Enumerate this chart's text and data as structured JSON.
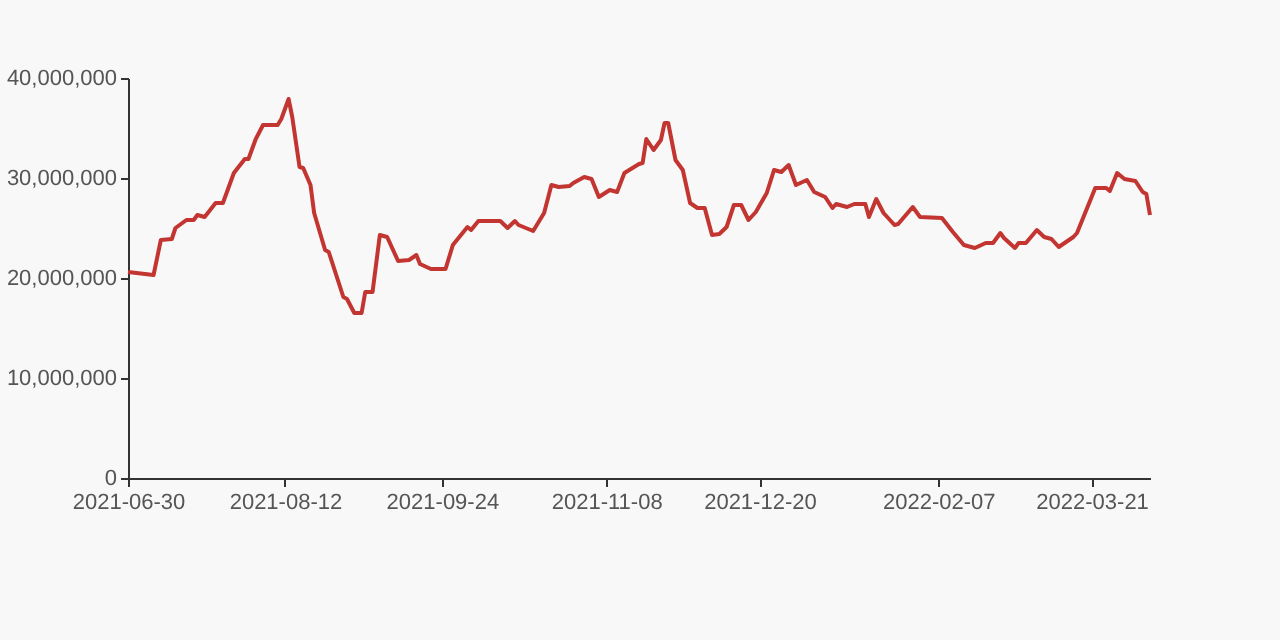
{
  "chart_data": {
    "type": "line",
    "x": [
      "2021-06-30",
      "2021-07-07",
      "2021-07-09",
      "2021-07-12",
      "2021-07-13",
      "2021-07-16",
      "2021-07-18",
      "2021-07-19",
      "2021-07-21",
      "2021-07-24",
      "2021-07-26",
      "2021-07-29",
      "2021-08-01",
      "2021-08-02",
      "2021-08-04",
      "2021-08-06",
      "2021-08-10",
      "2021-08-11",
      "2021-08-13",
      "2021-08-14",
      "2021-08-16",
      "2021-08-17",
      "2021-08-19",
      "2021-08-20",
      "2021-08-23",
      "2021-08-24",
      "2021-08-28",
      "2021-08-29",
      "2021-08-31",
      "2021-09-02",
      "2021-09-03",
      "2021-09-05",
      "2021-09-07",
      "2021-09-09",
      "2021-09-12",
      "2021-09-15",
      "2021-09-17",
      "2021-09-18",
      "2021-09-21",
      "2021-09-25",
      "2021-09-27",
      "2021-10-01",
      "2021-10-02",
      "2021-10-04",
      "2021-10-10",
      "2021-10-12",
      "2021-10-14",
      "2021-10-15",
      "2021-10-19",
      "2021-10-22",
      "2021-10-24",
      "2021-10-26",
      "2021-10-29",
      "2021-10-30",
      "2021-11-02",
      "2021-11-04",
      "2021-11-06",
      "2021-11-09",
      "2021-11-11",
      "2021-11-13",
      "2021-11-17",
      "2021-11-18",
      "2021-11-19",
      "2021-11-21",
      "2021-11-23",
      "2021-11-24",
      "2021-11-25",
      "2021-11-27",
      "2021-11-29",
      "2021-12-01",
      "2021-12-03",
      "2021-12-05",
      "2021-12-07",
      "2021-12-09",
      "2021-12-11",
      "2021-12-13",
      "2021-12-15",
      "2021-12-17",
      "2021-12-19",
      "2021-12-22",
      "2021-12-24",
      "2021-12-26",
      "2021-12-28",
      "2021-12-30",
      "2022-01-02",
      "2022-01-04",
      "2022-01-07",
      "2022-01-09",
      "2022-01-10",
      "2022-01-13",
      "2022-01-15",
      "2022-01-18",
      "2022-01-19",
      "2022-01-21",
      "2022-01-23",
      "2022-01-26",
      "2022-01-27",
      "2022-01-31",
      "2022-02-02",
      "2022-02-08",
      "2022-02-11",
      "2022-02-14",
      "2022-02-17",
      "2022-02-20",
      "2022-02-22",
      "2022-02-24",
      "2022-02-25",
      "2022-02-28",
      "2022-03-01",
      "2022-03-03",
      "2022-03-06",
      "2022-03-08",
      "2022-03-10",
      "2022-03-12",
      "2022-03-16",
      "2022-03-17",
      "2022-03-22",
      "2022-03-25",
      "2022-03-26",
      "2022-03-28",
      "2022-03-30",
      "2022-04-02",
      "2022-04-04",
      "2022-04-05",
      "2022-04-06"
    ],
    "series": [
      {
        "color": "#c23531",
        "values": [
          20600000,
          20300000,
          23800000,
          23900000,
          25000000,
          25800000,
          25800000,
          26300000,
          26100000,
          27500000,
          27500000,
          30500000,
          31900000,
          31900000,
          33900000,
          35300000,
          35300000,
          35900000,
          37900000,
          36100000,
          31100000,
          31000000,
          29300000,
          26500000,
          22800000,
          22600000,
          18100000,
          17900000,
          16500000,
          16500000,
          18600000,
          18600000,
          24300000,
          24100000,
          21700000,
          21800000,
          22300000,
          21400000,
          20900000,
          20900000,
          23300000,
          25100000,
          24800000,
          25700000,
          25700000,
          25000000,
          25700000,
          25300000,
          24700000,
          26500000,
          29300000,
          29100000,
          29200000,
          29500000,
          30100000,
          29900000,
          28100000,
          28800000,
          28600000,
          30500000,
          31400000,
          31500000,
          33900000,
          32800000,
          33800000,
          35500000,
          35500000,
          31800000,
          30800000,
          27500000,
          27000000,
          27000000,
          24300000,
          24400000,
          25100000,
          27300000,
          27300000,
          25800000,
          26600000,
          28500000,
          30800000,
          30600000,
          31300000,
          29300000,
          29800000,
          28600000,
          28100000,
          27000000,
          27400000,
          27100000,
          27400000,
          27400000,
          26100000,
          27900000,
          26500000,
          25300000,
          25400000,
          27100000,
          26100000,
          26000000,
          24600000,
          23300000,
          23000000,
          23500000,
          23500000,
          24500000,
          24000000,
          23000000,
          23500000,
          23500000,
          24800000,
          24100000,
          23900000,
          23100000,
          24100000,
          24500000,
          29000000,
          29000000,
          28700000,
          30500000,
          29900000,
          29700000,
          28600000,
          28400000,
          26300000
        ]
      }
    ],
    "xlim": [
      "2021-06-30",
      "2022-04-06"
    ],
    "xticks": [
      "2021-06-30",
      "2021-08-12",
      "2021-09-24",
      "2021-11-08",
      "2021-12-20",
      "2022-02-07",
      "2022-03-21"
    ],
    "ylim": [
      0,
      40000000
    ],
    "yticks": [
      0,
      {
        "value": 10000000,
        "label": "10,000,000"
      },
      {
        "value": 20000000,
        "label": "20,000,000"
      },
      {
        "value": 30000000,
        "label": "30,000,000"
      },
      {
        "value": 40000000,
        "label": "40,000,000"
      }
    ],
    "grid": false,
    "line_style": "solid"
  }
}
